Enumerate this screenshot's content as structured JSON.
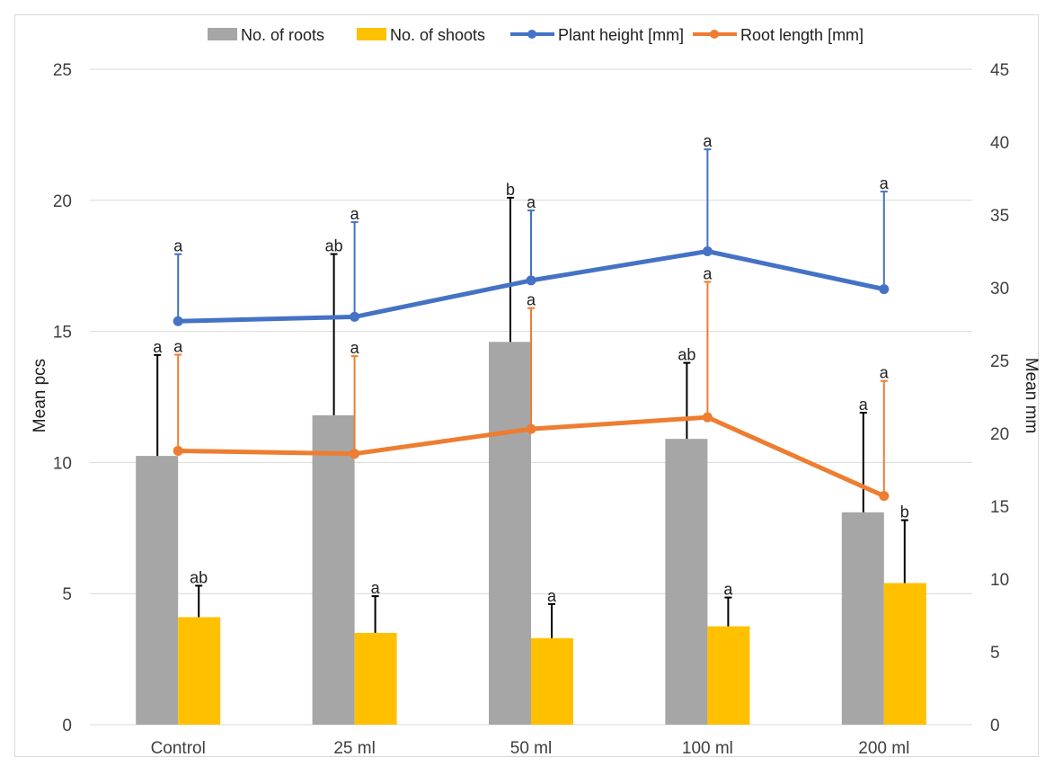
{
  "chart_data": {
    "type": "bar",
    "categories": [
      "Control",
      "25 ml",
      "50 ml",
      "100 ml",
      "200 ml"
    ],
    "y_left": {
      "label": "Mean pcs",
      "ticks": [
        "0",
        "5",
        "10",
        "15",
        "20",
        "25"
      ],
      "range": [
        0,
        25
      ]
    },
    "y_right": {
      "label": "Mean mm",
      "ticks": [
        "0",
        "5",
        "10",
        "15",
        "20",
        "25",
        "30",
        "35",
        "40",
        "45"
      ],
      "range": [
        0,
        45
      ]
    },
    "grid": true,
    "legend_position": "top",
    "series": [
      {
        "name": "No. of roots",
        "kind": "bar",
        "axis": "left",
        "color": "#a6a6a6",
        "values": [
          10.25,
          11.8,
          14.6,
          10.9,
          8.1
        ],
        "err_top": [
          14.1,
          17.95,
          20.1,
          13.8,
          11.9
        ],
        "letters": [
          "a",
          "ab",
          "b",
          "ab",
          "a"
        ]
      },
      {
        "name": "No. of shoots",
        "kind": "bar",
        "axis": "left",
        "color": "#ffc000",
        "values": [
          4.1,
          3.5,
          3.3,
          3.75,
          5.4
        ],
        "err_top": [
          5.3,
          4.9,
          4.6,
          4.85,
          7.8
        ],
        "letters": [
          "ab",
          "a",
          "a",
          "a",
          "b"
        ]
      },
      {
        "name": "Plant height [mm]",
        "kind": "line",
        "axis": "right",
        "color": "#4472c4",
        "values": [
          27.7,
          28.0,
          30.5,
          32.5,
          29.9
        ],
        "err_top": [
          32.3,
          34.5,
          35.3,
          39.5,
          36.6
        ],
        "letters": [
          "a",
          "a",
          "a",
          "a",
          "a"
        ]
      },
      {
        "name": "Root length [mm]",
        "kind": "line",
        "axis": "right",
        "color": "#ed7d31",
        "values": [
          18.8,
          18.6,
          20.3,
          21.1,
          15.7
        ],
        "err_top": [
          25.4,
          25.3,
          28.6,
          30.4,
          23.6
        ],
        "letters": [
          "a",
          "a",
          "a",
          "a",
          "a"
        ]
      }
    ]
  }
}
